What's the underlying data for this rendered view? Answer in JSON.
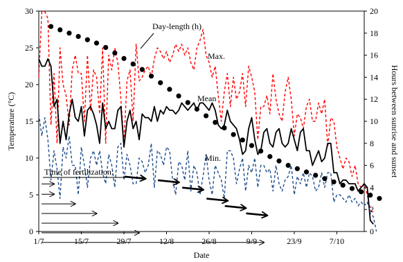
{
  "chart_data": {
    "type": "line",
    "xlabel": "Date",
    "ylabel_left": "Temperature (°C)",
    "ylabel_right": "Hours between sunrise and sunset",
    "x_start": "2012-07-01",
    "x_end": "2012-10-16",
    "xticks": [
      {
        "label": "1/7",
        "day": 0
      },
      {
        "label": "15/7",
        "day": 14
      },
      {
        "label": "29/7",
        "day": 28
      },
      {
        "label": "12/8",
        "day": 42
      },
      {
        "label": "26/8",
        "day": 56
      },
      {
        "label": "9/9",
        "day": 70
      },
      {
        "label": "23/9",
        "day": 84
      },
      {
        "label": "7/10",
        "day": 98
      }
    ],
    "ylim_left": [
      0,
      30
    ],
    "yticks_left": [
      "0",
      "5",
      "10",
      "15",
      "20",
      "25",
      "30"
    ],
    "ylim_right": [
      0,
      20
    ],
    "yticks_right": [
      "0",
      "2",
      "4",
      "6",
      "8",
      "10",
      "12",
      "14",
      "16",
      "18",
      "20"
    ],
    "grid": false,
    "annotations": {
      "max": "Max.",
      "mean": "Mean",
      "min": "Min.",
      "daylength": "Day-length (h)",
      "fertilization": "Time of fertilization:"
    },
    "series": [
      {
        "name": "Max.",
        "axis": "left",
        "color": "#ff0000",
        "style": "dashed",
        "values": [
          21,
          31,
          31,
          29,
          14.5,
          21.5,
          12,
          25,
          20,
          18.5,
          14.5,
          22,
          24,
          21.5,
          21.5,
          15,
          24,
          16.5,
          22,
          21,
          16,
          25,
          12,
          24,
          22,
          25,
          23,
          18,
          12,
          20.5,
          22,
          15,
          25.5,
          20.5,
          21,
          22,
          22.5,
          21,
          23.5,
          25,
          24.5,
          23.5,
          24.5,
          23,
          24,
          25.5,
          24.5,
          25.5,
          24,
          25,
          23,
          22,
          25,
          26,
          27.5,
          24,
          23,
          21,
          22.5,
          18.5,
          15,
          19,
          21.5,
          17,
          21,
          18,
          19,
          21.5,
          17,
          22.5,
          21,
          19,
          12.5,
          17,
          17,
          18.5,
          16,
          21.5,
          18,
          16,
          15,
          19,
          21,
          18,
          13,
          16,
          15.5,
          14,
          17,
          18,
          15,
          15,
          17.5,
          16,
          18,
          11.5,
          15.5,
          15,
          11.5,
          10,
          8.5,
          10,
          9.5,
          7.5,
          9,
          6.5,
          6,
          6.5,
          5,
          3,
          2.5
        ]
      },
      {
        "name": "Mean",
        "axis": "left",
        "color": "#000000",
        "style": "solid",
        "values": [
          23.5,
          22.5,
          22.5,
          23.5,
          22.5,
          17,
          18,
          12,
          15,
          12.5,
          16,
          18,
          15.5,
          15,
          17,
          13,
          16.5,
          17,
          16,
          14.5,
          12,
          17.5,
          14,
          15,
          14,
          14,
          16.5,
          17,
          11.5,
          15,
          16.5,
          14,
          15,
          12.5,
          16,
          15.5,
          15.5,
          15,
          17,
          15,
          16.5,
          16,
          17,
          16.5,
          16.5,
          16,
          16.5,
          17.5,
          17,
          16.5,
          17,
          17.5,
          16.5,
          17.5,
          17.5,
          17,
          16.5,
          17.5,
          16.5,
          14.5,
          14,
          14.5,
          16.5,
          15,
          14.5,
          14,
          12.5,
          10.5,
          11,
          14,
          15.5,
          12.5,
          10.5,
          11,
          13.5,
          14,
          12,
          11.5,
          13.5,
          14,
          12,
          11.5,
          12,
          14,
          12.5,
          11,
          13.5,
          14,
          11,
          11,
          9,
          10,
          11,
          9.5,
          10,
          12,
          12,
          8,
          8,
          6.5,
          7,
          7,
          6.5,
          6.5,
          6.5,
          5.5,
          6,
          6.5,
          6,
          1.5,
          1
        ]
      },
      {
        "name": "Min.",
        "axis": "left",
        "color": "#1f4e8c",
        "style": "dashed",
        "values": [
          16,
          13,
          15.5,
          12.5,
          7,
          11,
          8.5,
          4.5,
          11.5,
          10,
          13,
          9,
          9,
          5,
          11.5,
          9,
          6,
          10,
          11,
          9,
          11,
          8,
          6.5,
          10.5,
          9,
          6,
          11.5,
          12,
          7,
          10.5,
          9,
          6.5,
          6.5,
          10,
          9.5,
          8,
          9,
          12,
          6,
          11,
          10.5,
          9,
          11.5,
          11,
          7,
          5,
          9.5,
          9,
          7,
          11,
          5.5,
          9,
          8,
          5,
          7.5,
          10.5,
          7,
          5,
          9,
          8,
          7,
          4.5,
          11,
          11,
          10,
          6.5,
          8.5,
          10,
          5.5,
          9,
          8,
          10,
          6,
          9,
          9,
          8,
          8.5,
          5.5,
          9,
          6.5,
          5.5,
          7,
          7.5,
          9,
          5,
          7.5,
          6.5,
          8,
          6,
          8,
          7.5,
          5.5,
          6,
          8,
          6,
          8,
          8,
          4,
          5,
          5,
          4.5,
          4,
          5,
          4,
          4.5,
          3.5,
          4,
          3.5,
          4,
          2.5,
          2,
          -1
        ]
      },
      {
        "name": "Day-length (h)",
        "axis": "right",
        "color": "#000000",
        "style": "markers",
        "values": [
          18.6,
          18.5,
          18.4,
          18.3,
          18.2,
          18.1,
          18.0,
          17.9,
          17.8,
          17.7,
          17.6,
          17.5,
          17.4,
          17.3,
          17.2,
          17.1,
          17.0,
          16.8,
          16.7,
          16.5,
          16.4,
          16.2,
          16.1,
          15.9,
          15.7,
          15.6,
          15.4,
          15.2,
          15.0,
          14.8,
          14.7,
          14.5,
          14.3,
          14.1,
          13.9,
          13.7,
          13.5,
          13.3,
          13.1,
          12.9,
          12.7,
          12.5,
          12.3,
          12.1,
          11.9,
          11.7,
          11.5,
          11.3,
          11.1,
          10.9,
          10.7,
          10.5,
          10.3,
          10.1,
          9.9,
          9.7,
          9.6,
          9.4,
          9.2,
          9.0,
          8.8,
          8.6,
          8.4,
          8.3,
          8.1,
          7.9,
          7.8,
          7.6,
          7.4,
          7.3,
          7.1,
          7.0,
          6.8,
          6.7,
          6.6,
          6.4,
          6.3,
          6.2,
          6.0,
          5.9,
          5.8,
          5.7,
          5.6,
          5.5,
          5.4,
          5.3,
          5.2,
          5.1,
          5.0,
          4.9,
          4.8,
          4.7,
          4.6,
          4.5,
          4.4,
          4.3,
          4.2,
          4.1,
          4.0,
          3.9,
          3.8,
          3.7,
          3.6,
          3.5,
          3.4,
          3.3,
          3.2,
          3.1,
          3.0
        ]
      }
    ],
    "fertilization_periods": [
      {
        "start_day": 0,
        "end_day": 5
      },
      {
        "start_day": 0,
        "end_day": 5
      },
      {
        "start_day": 0,
        "end_day": 12
      },
      {
        "start_day": 0,
        "end_day": 19
      },
      {
        "start_day": 0,
        "end_day": 26
      },
      {
        "start_day": 0,
        "end_day": 33
      },
      {
        "start_day": 0,
        "end_day": 74
      }
    ],
    "fertilization_bold_arrows": [
      {
        "day": 35,
        "temp": 7.0
      },
      {
        "day": 46,
        "temp": 6.5
      },
      {
        "day": 54,
        "temp": 5.5
      },
      {
        "day": 62,
        "temp": 4.0
      },
      {
        "day": 68,
        "temp": 3.0
      },
      {
        "day": 75,
        "temp": 2.0
      }
    ]
  }
}
